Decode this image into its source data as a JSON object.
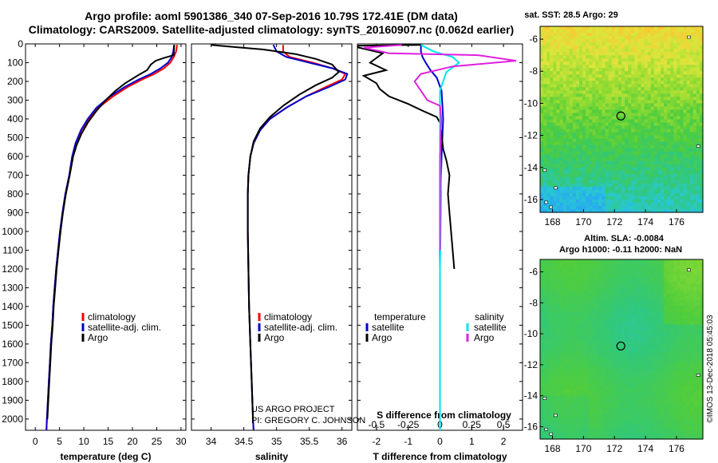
{
  "page": {
    "title_line1": "Argo profile: aoml 5901386_340 07-Sep-2016 10.79S 172.41E (DM data)",
    "title_line2": "Climatology: CARS2009. Satellite-adjusted climatology: synTS_20160907.nc (0.062d earlier)",
    "credit_line1": "US ARGO PROJECT",
    "credit_line2": "PI: GREGORY C. JOHNSON",
    "side_stamp": "©IMOS 13-Dec-2018 05:45:03"
  },
  "colors": {
    "climatology": "#ff0000",
    "satellite": "#0000cc",
    "argo": "#000000",
    "sal_sat_diff": "#00e5ee",
    "sal_argo_diff": "#e020e0"
  },
  "chart_data": [
    {
      "type": "line",
      "xlabel": "temperature (deg C)",
      "ylabel": "",
      "xlim": [
        -2,
        31
      ],
      "ylim": [
        2060,
        0
      ],
      "x_ticks": [
        0,
        5,
        10,
        15,
        20,
        25,
        30
      ],
      "y_ticks": [
        0,
        100,
        200,
        300,
        400,
        500,
        600,
        700,
        800,
        900,
        1000,
        1100,
        1200,
        1300,
        1400,
        1500,
        1600,
        1700,
        1800,
        1900,
        2000
      ],
      "legend": [
        "climatology",
        "satellite-adj. clim.",
        "Argo"
      ],
      "legend_position": "lower-center",
      "series": [
        {
          "name": "climatology",
          "color": "#ff0000",
          "points": [
            [
              29.2,
              5
            ],
            [
              29.0,
              40
            ],
            [
              28.5,
              70
            ],
            [
              27.8,
              100
            ],
            [
              26.5,
              130
            ],
            [
              24.5,
              160
            ],
            [
              22.0,
              190
            ],
            [
              19.0,
              230
            ],
            [
              16.0,
              280
            ],
            [
              13.0,
              340
            ],
            [
              11.0,
              400
            ],
            [
              9.5,
              460
            ],
            [
              8.3,
              530
            ],
            [
              7.6,
              600
            ],
            [
              7.0,
              700
            ],
            [
              6.2,
              800
            ],
            [
              5.6,
              900
            ],
            [
              5.1,
              1000
            ],
            [
              4.7,
              1100
            ],
            [
              4.3,
              1200
            ],
            [
              4.0,
              1300
            ],
            [
              3.7,
              1400
            ],
            [
              3.5,
              1500
            ],
            [
              3.2,
              1600
            ],
            [
              3.0,
              1700
            ],
            [
              2.8,
              1800
            ],
            [
              2.6,
              1900
            ],
            [
              2.4,
              2000
            ],
            [
              2.3,
              2060
            ]
          ]
        },
        {
          "name": "satellite-adj. clim.",
          "color": "#0000cc",
          "points": [
            [
              28.6,
              5
            ],
            [
              28.4,
              40
            ],
            [
              28.1,
              70
            ],
            [
              27.3,
              100
            ],
            [
              25.8,
              130
            ],
            [
              23.8,
              160
            ],
            [
              21.3,
              190
            ],
            [
              18.4,
              230
            ],
            [
              15.4,
              280
            ],
            [
              12.6,
              340
            ],
            [
              10.8,
              400
            ],
            [
              9.4,
              460
            ],
            [
              8.3,
              530
            ],
            [
              7.6,
              600
            ],
            [
              7.0,
              700
            ],
            [
              6.2,
              800
            ],
            [
              5.6,
              900
            ],
            [
              5.1,
              1000
            ],
            [
              4.7,
              1100
            ],
            [
              4.3,
              1200
            ],
            [
              4.0,
              1300
            ],
            [
              3.7,
              1400
            ],
            [
              3.5,
              1500
            ],
            [
              3.2,
              1600
            ],
            [
              3.0,
              1700
            ],
            [
              2.8,
              1800
            ],
            [
              2.6,
              1900
            ],
            [
              2.4,
              2000
            ],
            [
              2.3,
              2060
            ]
          ]
        },
        {
          "name": "Argo",
          "color": "#000000",
          "points": [
            [
              28.6,
              5
            ],
            [
              28.5,
              60
            ],
            [
              26.5,
              75
            ],
            [
              24.8,
              90
            ],
            [
              23.8,
              110
            ],
            [
              23.0,
              140
            ],
            [
              21.0,
              170
            ],
            [
              18.5,
              210
            ],
            [
              16.5,
              250
            ],
            [
              14.5,
              300
            ],
            [
              12.5,
              360
            ],
            [
              10.8,
              420
            ],
            [
              9.5,
              480
            ],
            [
              8.5,
              540
            ],
            [
              7.8,
              600
            ],
            [
              7.1,
              700
            ],
            [
              6.3,
              800
            ],
            [
              5.7,
              900
            ],
            [
              5.2,
              1000
            ],
            [
              4.8,
              1100
            ],
            [
              4.4,
              1200
            ],
            [
              4.1,
              1300
            ],
            [
              3.8,
              1400
            ],
            [
              3.6,
              1500
            ],
            [
              3.3,
              1600
            ],
            [
              3.1,
              1700
            ],
            [
              2.9,
              1800
            ],
            [
              2.7,
              1900
            ],
            [
              2.5,
              2000
            ]
          ]
        }
      ]
    },
    {
      "type": "line",
      "xlabel": "salinity",
      "ylabel": "",
      "xlim": [
        33.7,
        36.15
      ],
      "ylim": [
        2060,
        0
      ],
      "x_ticks": [
        34,
        34.5,
        35,
        35.5,
        36
      ],
      "legend": [
        "climatology",
        "satellite-adj. clim.",
        "Argo"
      ],
      "legend_position": "lower-right",
      "series": [
        {
          "name": "climatology",
          "color": "#ff0000",
          "points": [
            [
              35.1,
              5
            ],
            [
              35.1,
              40
            ],
            [
              35.2,
              70
            ],
            [
              35.55,
              100
            ],
            [
              35.85,
              130
            ],
            [
              36.05,
              160
            ],
            [
              36.0,
              190
            ],
            [
              35.75,
              230
            ],
            [
              35.45,
              280
            ],
            [
              35.15,
              340
            ],
            [
              34.9,
              400
            ],
            [
              34.75,
              460
            ],
            [
              34.65,
              530
            ],
            [
              34.6,
              600
            ],
            [
              34.57,
              700
            ],
            [
              34.56,
              800
            ],
            [
              34.56,
              1000
            ],
            [
              34.57,
              1200
            ],
            [
              34.58,
              1400
            ],
            [
              34.6,
              1600
            ],
            [
              34.62,
              1800
            ],
            [
              34.64,
              2000
            ],
            [
              34.65,
              2060
            ]
          ]
        },
        {
          "name": "satellite-adj. clim.",
          "color": "#0000cc",
          "points": [
            [
              34.95,
              5
            ],
            [
              35.0,
              40
            ],
            [
              35.15,
              70
            ],
            [
              35.5,
              100
            ],
            [
              35.85,
              130
            ],
            [
              36.08,
              160
            ],
            [
              36.05,
              190
            ],
            [
              35.8,
              230
            ],
            [
              35.45,
              280
            ],
            [
              35.15,
              340
            ],
            [
              34.9,
              400
            ],
            [
              34.75,
              460
            ],
            [
              34.65,
              530
            ],
            [
              34.6,
              600
            ],
            [
              34.57,
              700
            ],
            [
              34.56,
              800
            ],
            [
              34.56,
              1000
            ],
            [
              34.57,
              1200
            ],
            [
              34.58,
              1400
            ],
            [
              34.6,
              1600
            ],
            [
              34.62,
              1800
            ],
            [
              34.64,
              2000
            ],
            [
              34.65,
              2060
            ]
          ]
        },
        {
          "name": "Argo",
          "color": "#000000",
          "points": [
            [
              34.0,
              5
            ],
            [
              34.3,
              15
            ],
            [
              34.8,
              30
            ],
            [
              35.3,
              55
            ],
            [
              35.6,
              80
            ],
            [
              35.85,
              110
            ],
            [
              35.95,
              150
            ],
            [
              35.85,
              180
            ],
            [
              35.6,
              220
            ],
            [
              35.35,
              270
            ],
            [
              35.1,
              330
            ],
            [
              34.9,
              390
            ],
            [
              34.75,
              450
            ],
            [
              34.65,
              520
            ],
            [
              34.6,
              600
            ],
            [
              34.57,
              700
            ],
            [
              34.56,
              800
            ],
            [
              34.56,
              1000
            ],
            [
              34.57,
              1200
            ],
            [
              34.58,
              1400
            ],
            [
              34.6,
              1600
            ],
            [
              34.62,
              1800
            ],
            [
              34.64,
              2000
            ]
          ]
        }
      ]
    },
    {
      "type": "line",
      "xlabel": "T difference from climatology",
      "x2label": "S difference from climatology",
      "ylabel": "",
      "xlim": [
        -2.6,
        2.6
      ],
      "x2lim": [
        -0.65,
        0.65
      ],
      "ylim": [
        2060,
        0
      ],
      "x_ticks": [
        -2,
        -1,
        0,
        1,
        2
      ],
      "x2_ticks": [
        -0.5,
        -0.25,
        0,
        0.25,
        0.5
      ],
      "x2_tick_labels": [
        "-0.5",
        "-0.25",
        "0",
        "0.25",
        "0.5"
      ],
      "legend_left_title": "temperature",
      "legend_right_title": "salinity",
      "legend_left": [
        "satellite",
        "Argo"
      ],
      "legend_right": [
        "satellite",
        "Argo"
      ],
      "legend_position": "lower-center",
      "series": [
        {
          "name": "satellite",
          "group": "temperature",
          "axis": "T",
          "color": "#0000cc",
          "points": [
            [
              -0.6,
              5
            ],
            [
              -0.6,
              40
            ],
            [
              -0.55,
              70
            ],
            [
              -0.45,
              100
            ],
            [
              -0.3,
              140
            ],
            [
              -0.1,
              180
            ],
            [
              0.05,
              250
            ],
            [
              0.1,
              400
            ],
            [
              0.05,
              600
            ],
            [
              0.02,
              800
            ],
            [
              0.0,
              1000
            ],
            [
              0.0,
              1400
            ],
            [
              0.0,
              2060
            ]
          ]
        },
        {
          "name": "Argo",
          "group": "temperature",
          "axis": "T",
          "color": "#000000",
          "points": [
            [
              -0.6,
              5
            ],
            [
              -2.8,
              10
            ],
            [
              -1.8,
              50
            ],
            [
              -2.2,
              100
            ],
            [
              -1.7,
              140
            ],
            [
              -2.4,
              170
            ],
            [
              -2.0,
              210
            ],
            [
              -1.9,
              240
            ],
            [
              -1.6,
              280
            ],
            [
              -1.0,
              320
            ],
            [
              -0.5,
              360
            ],
            [
              -0.1,
              390
            ],
            [
              0.0,
              420
            ],
            [
              0.05,
              480
            ],
            [
              0.1,
              560
            ],
            [
              0.2,
              620
            ],
            [
              0.3,
              700
            ],
            [
              0.25,
              800
            ],
            [
              0.3,
              900
            ],
            [
              0.35,
              1000
            ],
            [
              0.4,
              1100
            ],
            [
              0.45,
              1200
            ]
          ]
        },
        {
          "name": "satellite",
          "group": "salinity",
          "axis": "S",
          "color": "#00e5ee",
          "points": [
            [
              -0.15,
              5
            ],
            [
              -0.05,
              40
            ],
            [
              0.1,
              70
            ],
            [
              0.15,
              100
            ],
            [
              0.05,
              150
            ],
            [
              0.0,
              250
            ],
            [
              0.0,
              500
            ],
            [
              0.01,
              800
            ],
            [
              0.0,
              1200
            ],
            [
              0.0,
              2060
            ]
          ]
        },
        {
          "name": "Argo",
          "group": "salinity",
          "axis": "S",
          "color": "#e020e0",
          "points": [
            [
              -0.3,
              5
            ],
            [
              -0.6,
              20
            ],
            [
              -0.4,
              50
            ],
            [
              0.3,
              60
            ],
            [
              0.6,
              90
            ],
            [
              0.1,
              120
            ],
            [
              -0.15,
              160
            ],
            [
              -0.2,
              200
            ],
            [
              -0.15,
              250
            ],
            [
              -0.1,
              300
            ],
            [
              0.0,
              330
            ],
            [
              0.01,
              400
            ],
            [
              0.0,
              600
            ],
            [
              0.0,
              1100
            ]
          ]
        }
      ]
    }
  ],
  "maps": [
    {
      "type": "heatmap",
      "title": "sat. SST: 28.5 Argo: 29",
      "x_ticks": [
        168,
        170,
        172,
        174,
        176
      ],
      "y_ticks": [
        -6,
        -8,
        -10,
        -12,
        -14,
        -16
      ],
      "xlim": [
        167.2,
        177.7
      ],
      "ylim": [
        -16.8,
        -5.2
      ],
      "marker": {
        "lon": 172.41,
        "lat": -10.79
      }
    },
    {
      "type": "heatmap",
      "title_line1": "Altim. SLA: -0.0084",
      "title_line2": "Argo h1000: -0.11 h2000: NaN",
      "x_ticks": [
        168,
        170,
        172,
        174,
        176
      ],
      "y_ticks": [
        -6,
        -8,
        -10,
        -12,
        -14,
        -16
      ],
      "xlim": [
        167.2,
        177.7
      ],
      "ylim": [
        -16.8,
        -5.2
      ],
      "marker": {
        "lon": 172.41,
        "lat": -10.79
      }
    }
  ]
}
